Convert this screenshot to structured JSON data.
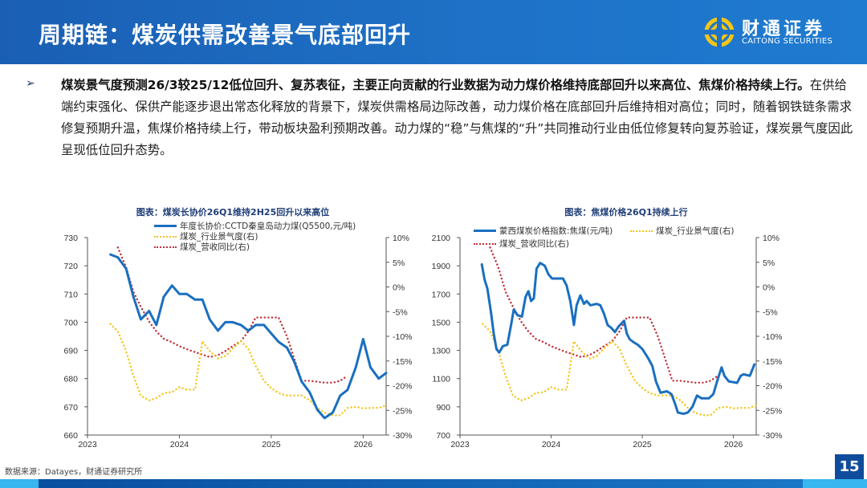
{
  "header": {
    "title": "周期链：煤炭供需改善景气底部回升",
    "logo_cn": "财通证券",
    "logo_en": "CAITONG SECURITIES"
  },
  "body": {
    "bold": "煤炭景气度预测26/3较25/12低位回升、复苏表征，主要正向贡献的行业数据为动力煤价格维持底部回升以来高位、焦煤价格持续上行。",
    "text": "在供给端约束强化、保供产能逐步退出常态化释放的背景下，煤炭供需格局边际改善，动力煤价格在底部回升后维持相对高位；同时，随着钢铁链条需求修复预期升温，焦煤价格持续上行，带动板块盈利预期改善。动力煤的“稳”与焦煤的“升”共同推动行业由低位修复转向复苏验证，煤炭景气度因此呈现低位回升态势。"
  },
  "footer": {
    "source": "数据来源：Datayes，财通证券研究所",
    "page": "15"
  },
  "colors": {
    "price": "#1a6fc0",
    "prosperity": "#f5c518",
    "revenue": "#c0303a",
    "brand": "#1a5fb4"
  },
  "chart_data": [
    {
      "type": "line",
      "title": "图表：煤炭长协价26Q1维持2H25回升以来高位",
      "x_ticks": [
        "2023",
        "2024",
        "2025",
        "2026"
      ],
      "xlim": [
        2023,
        2026.25
      ],
      "y_left": {
        "lim": [
          660,
          730
        ],
        "ticks": [
          "660",
          "670",
          "680",
          "690",
          "700",
          "710",
          "720",
          "730"
        ]
      },
      "y_right": {
        "lim": [
          -30,
          10
        ],
        "ticks": [
          "-30%",
          "-25%",
          "-20%",
          "-15%",
          "-10%",
          "-5%",
          "0%",
          "5%",
          "10%"
        ]
      },
      "legend": "top-center",
      "grid": false,
      "series": [
        {
          "name": "年度长协价:CCTD秦皇岛动力煤(Q5500,元/吨)",
          "axis": "left",
          "style": "solid",
          "color": "#1a6fc0",
          "x": [
            2023.25,
            2023.33,
            2023.42,
            2023.5,
            2023.58,
            2023.67,
            2023.75,
            2023.83,
            2023.92,
            2024.0,
            2024.08,
            2024.17,
            2024.25,
            2024.33,
            2024.42,
            2024.5,
            2024.58,
            2024.67,
            2024.75,
            2024.83,
            2024.92,
            2025.0,
            2025.08,
            2025.17,
            2025.25,
            2025.33,
            2025.42,
            2025.5,
            2025.58,
            2025.67,
            2025.75,
            2025.83,
            2025.92,
            2026.0,
            2026.08,
            2026.17,
            2026.25
          ],
          "y": [
            724,
            723,
            719,
            709,
            701,
            704,
            699,
            709,
            713,
            710,
            710,
            708,
            708,
            701,
            697,
            700,
            700,
            699,
            697,
            699,
            699,
            696,
            693,
            691,
            686,
            679,
            675,
            669,
            666,
            668,
            674,
            676,
            684,
            694,
            684,
            680,
            682
          ]
        },
        {
          "name": "煤炭_行业景气度(右)",
          "axis": "right",
          "style": "dotted",
          "color": "#f5c518",
          "x": [
            2023.25,
            2023.33,
            2023.42,
            2023.5,
            2023.58,
            2023.67,
            2023.75,
            2023.83,
            2023.92,
            2024.0,
            2024.08,
            2024.17,
            2024.25,
            2024.33,
            2024.42,
            2024.5,
            2024.58,
            2024.67,
            2024.75,
            2024.83,
            2024.92,
            2025.0,
            2025.08,
            2025.17,
            2025.25,
            2025.33,
            2025.42,
            2025.5,
            2025.58,
            2025.67,
            2025.75,
            2025.83,
            2025.92,
            2026.0,
            2026.08,
            2026.17,
            2026.25
          ],
          "y": [
            -7.5,
            -9,
            -13,
            -18,
            -22,
            -23,
            -22.5,
            -21.5,
            -21.3,
            -20.3,
            -20.8,
            -20.8,
            -11,
            -13,
            -14.5,
            -14,
            -12.5,
            -11,
            -12.5,
            -16,
            -19,
            -20.5,
            -21.5,
            -22,
            -22,
            -22,
            -23,
            -24.5,
            -25.5,
            -26,
            -26,
            -24.5,
            -24.3,
            -24.6,
            -24.5,
            -24.5,
            -24
          ]
        },
        {
          "name": "煤炭_营收同比(右)",
          "axis": "right",
          "style": "dotted",
          "color": "#c0303a",
          "x": [
            2023.33,
            2023.42,
            2023.5,
            2023.58,
            2023.67,
            2023.75,
            2023.83,
            2023.92,
            2024.0,
            2024.08,
            2024.17,
            2024.25,
            2024.33,
            2024.42,
            2024.5,
            2024.58,
            2024.67,
            2024.75,
            2024.83,
            2024.92,
            2025.0,
            2025.08,
            2025.17,
            2025.25,
            2025.33,
            2025.42,
            2025.5,
            2025.58,
            2025.67,
            2025.75,
            2025.83
          ],
          "y": [
            8,
            4,
            -1,
            -4,
            -7,
            -9,
            -10.5,
            -11.2,
            -12,
            -12.6,
            -13.2,
            -13.7,
            -14.2,
            -13.8,
            -13,
            -12,
            -11,
            -9,
            -6.2,
            -6.2,
            -6.2,
            -6.2,
            -10,
            -14.5,
            -19,
            -19,
            -19.2,
            -19.4,
            -19.4,
            -19,
            -18
          ]
        }
      ]
    },
    {
      "type": "line",
      "title": "图表：焦煤价格26Q1持续上行",
      "x_ticks": [
        "2023",
        "2024",
        "2025",
        "2026"
      ],
      "xlim": [
        2023,
        2026.25
      ],
      "y_left": {
        "lim": [
          700,
          2100
        ],
        "ticks": [
          "700",
          "900",
          "1100",
          "1300",
          "1500",
          "1700",
          "1900",
          "2100"
        ]
      },
      "y_right": {
        "lim": [
          -30,
          10
        ],
        "ticks": [
          "-30%",
          "-25%",
          "-20%",
          "-15%",
          "-10%",
          "-5%",
          "0%",
          "5%",
          "10%"
        ]
      },
      "legend": "top-center",
      "grid": false,
      "series": [
        {
          "name": "蒙西煤炭价格指数:焦煤(元/吨)",
          "axis": "left",
          "style": "solid",
          "color": "#1a6fc0",
          "x": [
            2023.24,
            2023.27,
            2023.3,
            2023.34,
            2023.37,
            2023.4,
            2023.43,
            2023.47,
            2023.52,
            2023.56,
            2023.59,
            2023.63,
            2023.68,
            2023.72,
            2023.75,
            2023.78,
            2023.81,
            2023.84,
            2023.88,
            2023.93,
            2023.97,
            2024.01,
            2024.06,
            2024.13,
            2024.17,
            2024.21,
            2024.25,
            2024.28,
            2024.32,
            2024.36,
            2024.39,
            2024.43,
            2024.5,
            2024.54,
            2024.58,
            2024.62,
            2024.66,
            2024.7,
            2024.74,
            2024.8,
            2024.83,
            2024.86,
            2024.9,
            2024.95,
            2025.0,
            2025.06,
            2025.11,
            2025.15,
            2025.2,
            2025.27,
            2025.32,
            2025.36,
            2025.39,
            2025.45,
            2025.5,
            2025.55,
            2025.6,
            2025.65,
            2025.73,
            2025.78,
            2025.83,
            2025.87,
            2025.9,
            2025.95,
            2026.04,
            2026.08,
            2026.11,
            2026.18,
            2026.23
          ],
          "y": [
            1910,
            1800,
            1740,
            1570,
            1420,
            1310,
            1285,
            1330,
            1340,
            1480,
            1590,
            1550,
            1540,
            1680,
            1720,
            1650,
            1670,
            1880,
            1920,
            1900,
            1840,
            1810,
            1810,
            1810,
            1760,
            1650,
            1480,
            1620,
            1690,
            1630,
            1650,
            1620,
            1630,
            1620,
            1560,
            1480,
            1460,
            1430,
            1470,
            1510,
            1420,
            1380,
            1360,
            1340,
            1310,
            1250,
            1190,
            1080,
            1000,
            1010,
            990,
            920,
            860,
            850,
            860,
            900,
            980,
            960,
            960,
            990,
            1100,
            1180,
            1120,
            1080,
            1070,
            1120,
            1130,
            1120,
            1200
          ]
        },
        {
          "name": "煤炭_行业景气度(右)",
          "axis": "right",
          "style": "dotted",
          "color": "#f5c518",
          "x": [
            2023.25,
            2023.33,
            2023.42,
            2023.5,
            2023.58,
            2023.67,
            2023.75,
            2023.83,
            2023.92,
            2024.0,
            2024.08,
            2024.17,
            2024.25,
            2024.33,
            2024.42,
            2024.5,
            2024.58,
            2024.67,
            2024.75,
            2024.83,
            2024.92,
            2025.0,
            2025.08,
            2025.17,
            2025.25,
            2025.33,
            2025.42,
            2025.5,
            2025.58,
            2025.67,
            2025.75,
            2025.83,
            2025.92,
            2026.0,
            2026.08,
            2026.17,
            2026.25
          ],
          "y": [
            -7.5,
            -9,
            -13,
            -18,
            -22,
            -23,
            -22.5,
            -21.5,
            -21.3,
            -20.3,
            -20.8,
            -20.8,
            -11,
            -13,
            -14.5,
            -14,
            -12.5,
            -11,
            -12.5,
            -16,
            -19,
            -20.5,
            -21.5,
            -22,
            -22,
            -22,
            -23,
            -24.5,
            -25.5,
            -26,
            -26,
            -24.5,
            -24.3,
            -24.6,
            -24.5,
            -24.5,
            -24
          ]
        },
        {
          "name": "煤炭_营收同比(右)",
          "axis": "right",
          "style": "dotted",
          "color": "#c0303a",
          "x": [
            2023.33,
            2023.42,
            2023.5,
            2023.58,
            2023.67,
            2023.75,
            2023.83,
            2023.92,
            2024.0,
            2024.08,
            2024.17,
            2024.25,
            2024.33,
            2024.42,
            2024.5,
            2024.58,
            2024.67,
            2024.75,
            2024.83,
            2024.92,
            2025.0,
            2025.08,
            2025.17,
            2025.25,
            2025.33,
            2025.42,
            2025.5,
            2025.58,
            2025.67,
            2025.75,
            2025.83
          ],
          "y": [
            8,
            4,
            -1,
            -4,
            -7,
            -9,
            -10.5,
            -11.2,
            -12,
            -12.6,
            -13.2,
            -13.7,
            -14.2,
            -13.8,
            -13,
            -12,
            -11,
            -9,
            -6.2,
            -6.2,
            -6.2,
            -6.2,
            -10,
            -14.5,
            -19,
            -19,
            -19.2,
            -19.4,
            -19.4,
            -19,
            -18
          ]
        }
      ]
    }
  ]
}
